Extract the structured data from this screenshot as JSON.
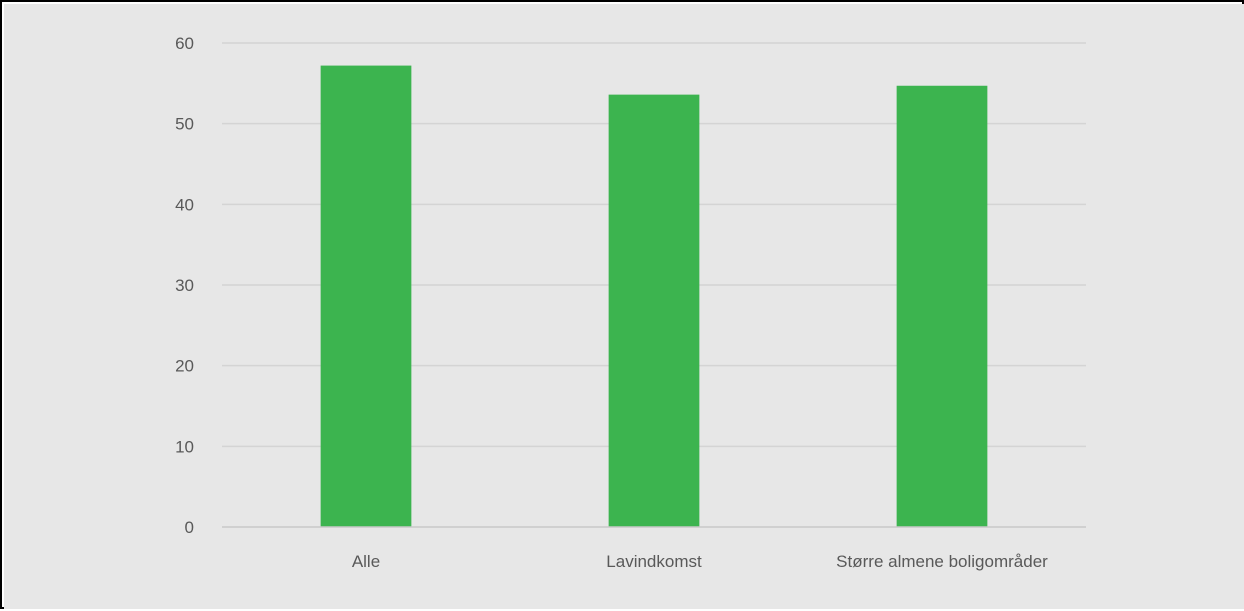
{
  "chart_data": {
    "type": "bar",
    "categories": [
      "Alle",
      "Lavindkomst",
      "Større almene boligområder"
    ],
    "values": [
      57.2,
      53.6,
      54.7
    ],
    "ylim": [
      0,
      60
    ],
    "yticks": [
      0,
      10,
      20,
      30,
      40,
      50,
      60
    ],
    "grid": true,
    "legend": "none",
    "colors": {
      "background": "#e7e7e7",
      "bar": "#3cb44f",
      "grid": "#d4d4d4",
      "axis": "#c8c8c8",
      "text": "#595959"
    }
  }
}
